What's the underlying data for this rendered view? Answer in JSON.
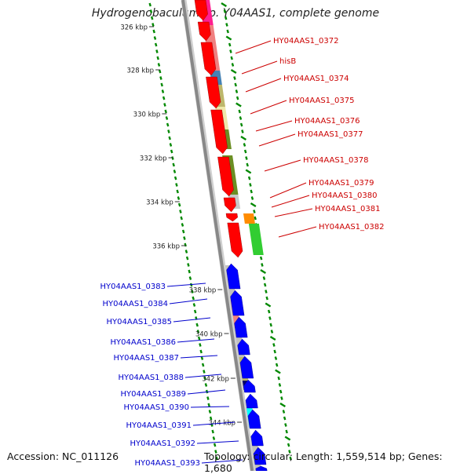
{
  "title": "Hydrogenobaculum sp. Y04AAS1, complete genome",
  "footer": {
    "accession": "Accession: NC_011126",
    "summary": "Topology: circular; Length: 1,559,514 bp; Genes: 1,680"
  },
  "colors": {
    "forward_label": "#cc0000",
    "reverse_label": "#0000cc",
    "forward_gene": "#ff0000",
    "reverse_gene": "#0000ff",
    "backbone": "#888888",
    "gc_ticks": "#008800"
  },
  "ticks": [
    "326 kbp",
    "328 kbp",
    "330 kbp",
    "332 kbp",
    "334 kbp",
    "336 kbp",
    "338 kbp",
    "340 kbp",
    "342 kbp",
    "344 kbp"
  ],
  "forward_labels": [
    "HY04AAS1_0372",
    "hisB",
    "HY04AAS1_0374",
    "HY04AAS1_0375",
    "HY04AAS1_0376",
    "HY04AAS1_0377",
    "HY04AAS1_0378",
    "HY04AAS1_0379",
    "HY04AAS1_0380",
    "HY04AAS1_0381",
    "HY04AAS1_0382"
  ],
  "reverse_labels": [
    "HY04AAS1_0383",
    "HY04AAS1_0384",
    "HY04AAS1_0385",
    "HY04AAS1_0386",
    "HY04AAS1_0387",
    "HY04AAS1_0388",
    "HY04AAS1_0389",
    "HY04AAS1_0390",
    "HY04AAS1_0391",
    "HY04AAS1_0392",
    "HY04AAS1_0393"
  ]
}
